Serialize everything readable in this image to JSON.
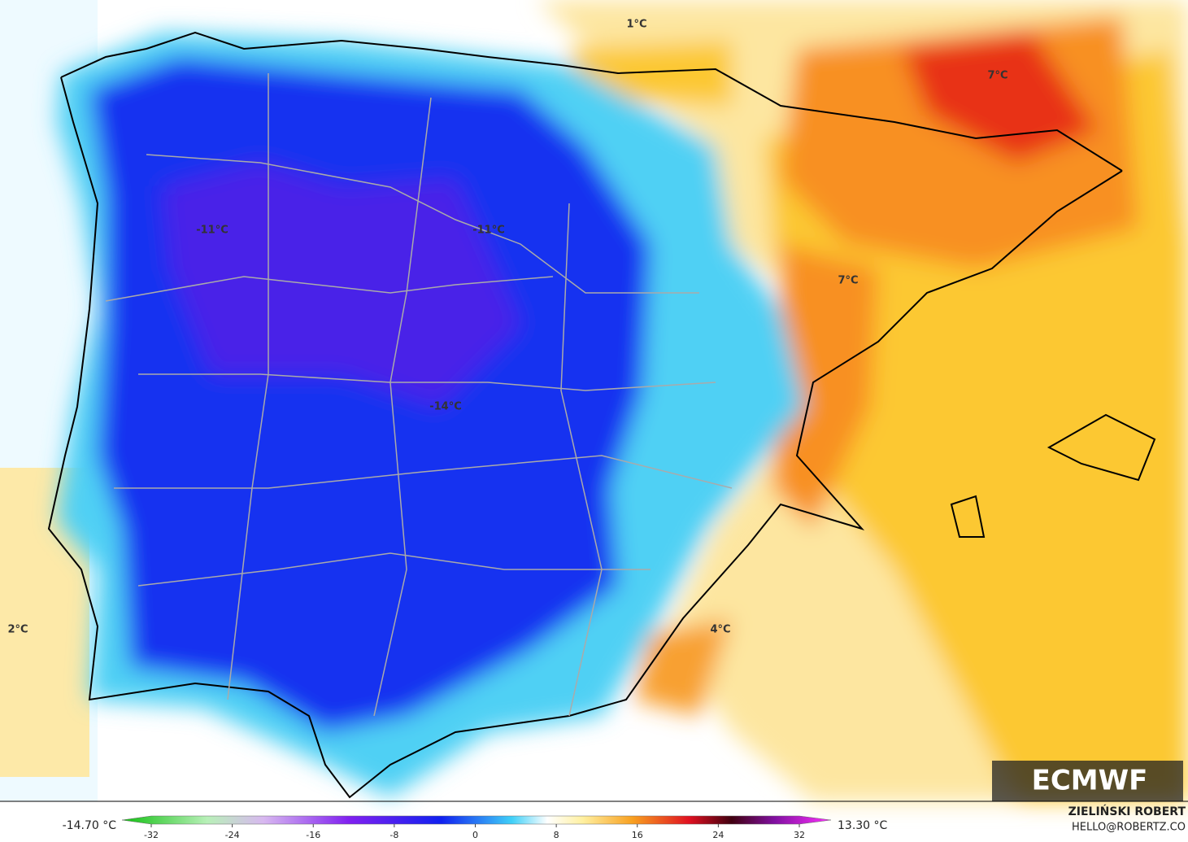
{
  "map": {
    "labels": [
      "1°C",
      "7°C",
      "-11°C",
      "-11°C",
      "7°C",
      "-14°C",
      "2°C",
      "4°C"
    ],
    "logo": "ECMWF",
    "min_label": "-14.70 °C",
    "max_label": "13.30 °C",
    "colorbar": {
      "range": [
        -32,
        32
      ],
      "ticks": [
        -32,
        -24,
        -16,
        -8,
        0,
        8,
        16,
        24,
        32
      ]
    },
    "author": "ZIELIŃSKI ROBERT",
    "contact": "HELLO@ROBERTZ.CO"
  }
}
